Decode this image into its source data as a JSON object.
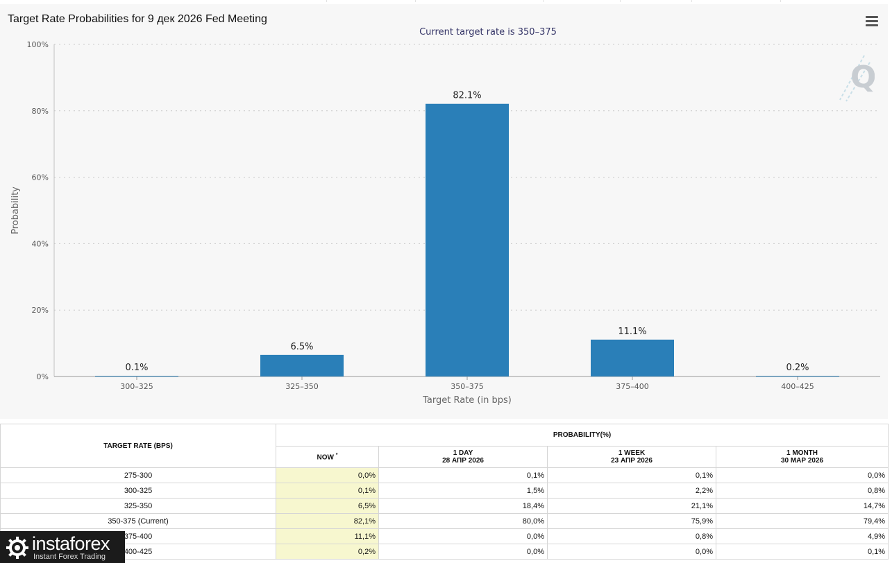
{
  "header": {
    "title": "Target Rate Probabilities for 9 дек 2026 Fed Meeting"
  },
  "chart_data": {
    "type": "bar",
    "title": "Target Rate Probabilities for 9 дек 2026 Fed Meeting",
    "subtitle": "Current target rate is 350–375",
    "xlabel": "Target Rate (in bps)",
    "ylabel": "Probability",
    "categories": [
      "300–325",
      "325–350",
      "350–375",
      "375–400",
      "400–425"
    ],
    "values": [
      0.1,
      6.5,
      82.1,
      11.1,
      0.2
    ],
    "data_labels": [
      "0.1%",
      "6.5%",
      "82.1%",
      "11.1%",
      "0.2%"
    ],
    "ylim": [
      0,
      100
    ],
    "yticks": [
      0,
      20,
      40,
      60,
      80,
      100
    ],
    "ytick_labels": [
      "0%",
      "20%",
      "40%",
      "60%",
      "80%",
      "100%"
    ],
    "bar_color": "#2a7fb8",
    "grid": true
  },
  "table": {
    "col_rate": "TARGET RATE (BPS)",
    "col_prob": "PROBABILITY(%)",
    "col_now": "NOW",
    "col_now_mark": "*",
    "col_1day": "1 DAY",
    "col_1day_date": "28 АПР 2026",
    "col_1week": "1 WEEK",
    "col_1week_date": "23 АПР 2026",
    "col_1month": "1 MONTH",
    "col_1month_date": "30 МАР 2026",
    "rows": [
      {
        "rate": "275-300",
        "now": "0,0%",
        "day": "0,1%",
        "week": "0,1%",
        "month": "0,0%"
      },
      {
        "rate": "300-325",
        "now": "0,1%",
        "day": "1,5%",
        "week": "2,2%",
        "month": "0,8%"
      },
      {
        "rate": "325-350",
        "now": "6,5%",
        "day": "18,4%",
        "week": "21,1%",
        "month": "14,7%"
      },
      {
        "rate": "350-375 (Current)",
        "now": "82,1%",
        "day": "80,0%",
        "week": "75,9%",
        "month": "79,4%"
      },
      {
        "rate": "375-400",
        "now": "11,1%",
        "day": "0,0%",
        "week": "0,8%",
        "month": "4,9%"
      },
      {
        "rate": "400-425",
        "now": "0,2%",
        "day": "0,0%",
        "week": "0,0%",
        "month": "0,1%"
      }
    ]
  },
  "watermark": {
    "name": "instaforex",
    "tagline": "Instant Forex Trading"
  }
}
